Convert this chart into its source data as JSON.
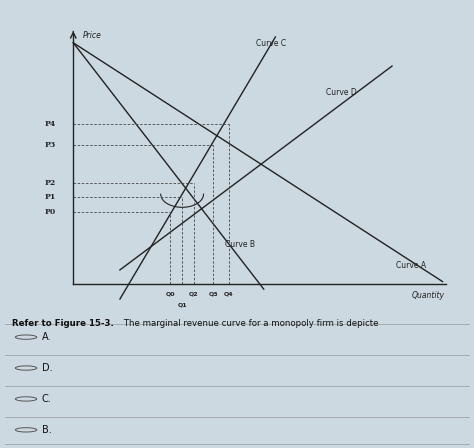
{
  "bg_color": "#ccd9e0",
  "graph_bg": "#ccd9e0",
  "price_label": "Price",
  "quantity_label": "Quantity",
  "y_ticks": [
    "P4",
    "P3",
    "P2",
    "P1",
    "P0"
  ],
  "y_tick_vals": [
    5.5,
    4.8,
    3.5,
    3.0,
    2.5
  ],
  "x_ticks": [
    "Q0",
    "Q1",
    "Q2",
    "Q3",
    "Q4"
  ],
  "x_tick_vals": [
    2.8,
    3.1,
    3.4,
    3.9,
    4.3
  ],
  "curve_A_label": "Curve A",
  "curve_B_label": "Curve B",
  "curve_C_label": "Curve C",
  "curve_D_label": "Curve D",
  "question_text": "Refer to Figure 15-3. The marginal revenue curve for a monopoly firm is depicte",
  "options": [
    "A.",
    "D.",
    "C.",
    "B."
  ],
  "line_color": "#222222",
  "dashed_color": "#444444",
  "xlim": [
    0,
    10
  ],
  "ylim": [
    -1,
    9
  ]
}
